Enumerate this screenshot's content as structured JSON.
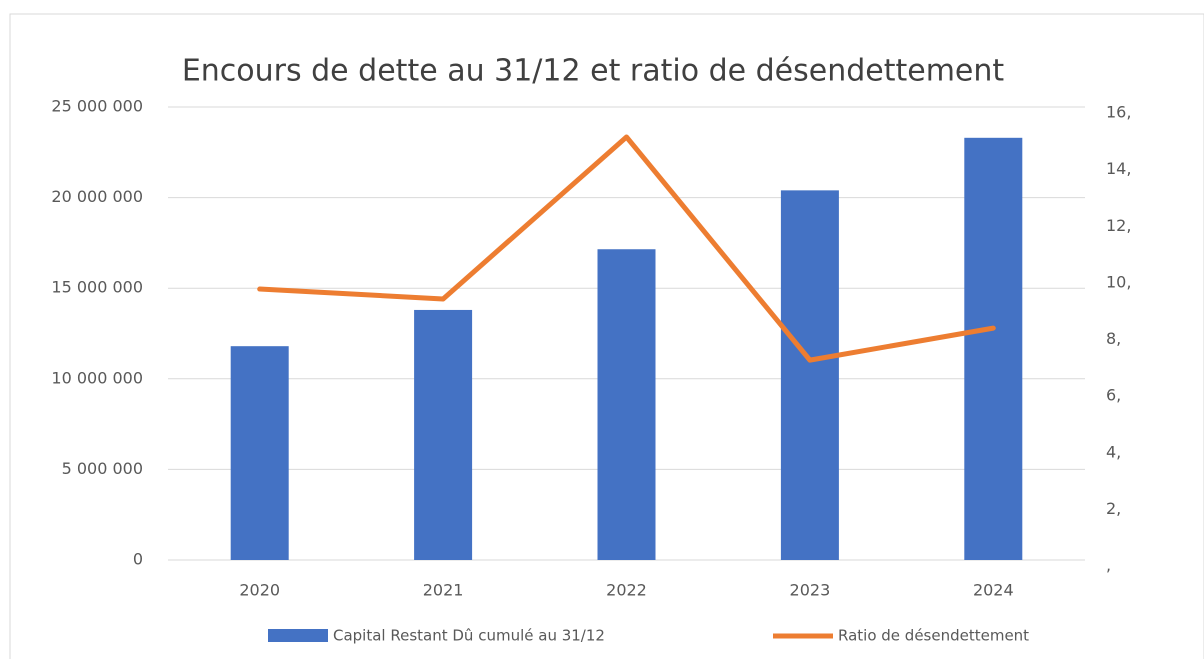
{
  "chart_data": {
    "type": "bar",
    "title": "Encours de dette au 31/12 et ratio de désendettement",
    "categories": [
      "2020",
      "2021",
      "2022",
      "2023",
      "2024"
    ],
    "series": [
      {
        "name": "Capital Restant Dû cumulé au 31/12",
        "type": "bar",
        "color": "#4472c4",
        "values": [
          11800000,
          13800000,
          17150000,
          20400000,
          23300000
        ]
      },
      {
        "name": "Ratio de désendettement",
        "type": "line",
        "axis": "y2",
        "color": "#ed7d31",
        "values": [
          9.57,
          9.22,
          14.94,
          7.06,
          8.19
        ]
      }
    ],
    "ylim": [
      0,
      25000000
    ],
    "yticks": [
      0,
      {
        "value": 5000000,
        "label": "5 000 000"
      },
      {
        "value": 10000000,
        "label": "10 000 000"
      },
      {
        "value": 15000000,
        "label": "15 000 000"
      },
      {
        "value": 20000000,
        "label": "20 000 000"
      },
      {
        "value": 25000000,
        "label": "25 000 000"
      }
    ],
    "y2lim": [
      0,
      16
    ],
    "y2ticks": [
      {
        "value": 0,
        "label": ","
      },
      {
        "value": 2,
        "label": "2,"
      },
      {
        "value": 4,
        "label": "4,"
      },
      {
        "value": 6,
        "label": "6,"
      },
      {
        "value": 8,
        "label": "8,"
      },
      {
        "value": 10,
        "label": "10,"
      },
      {
        "value": 12,
        "label": "12,"
      },
      {
        "value": 14,
        "label": "14,"
      },
      {
        "value": 16,
        "label": "16,"
      }
    ],
    "grid": true,
    "legend": "bottom"
  }
}
